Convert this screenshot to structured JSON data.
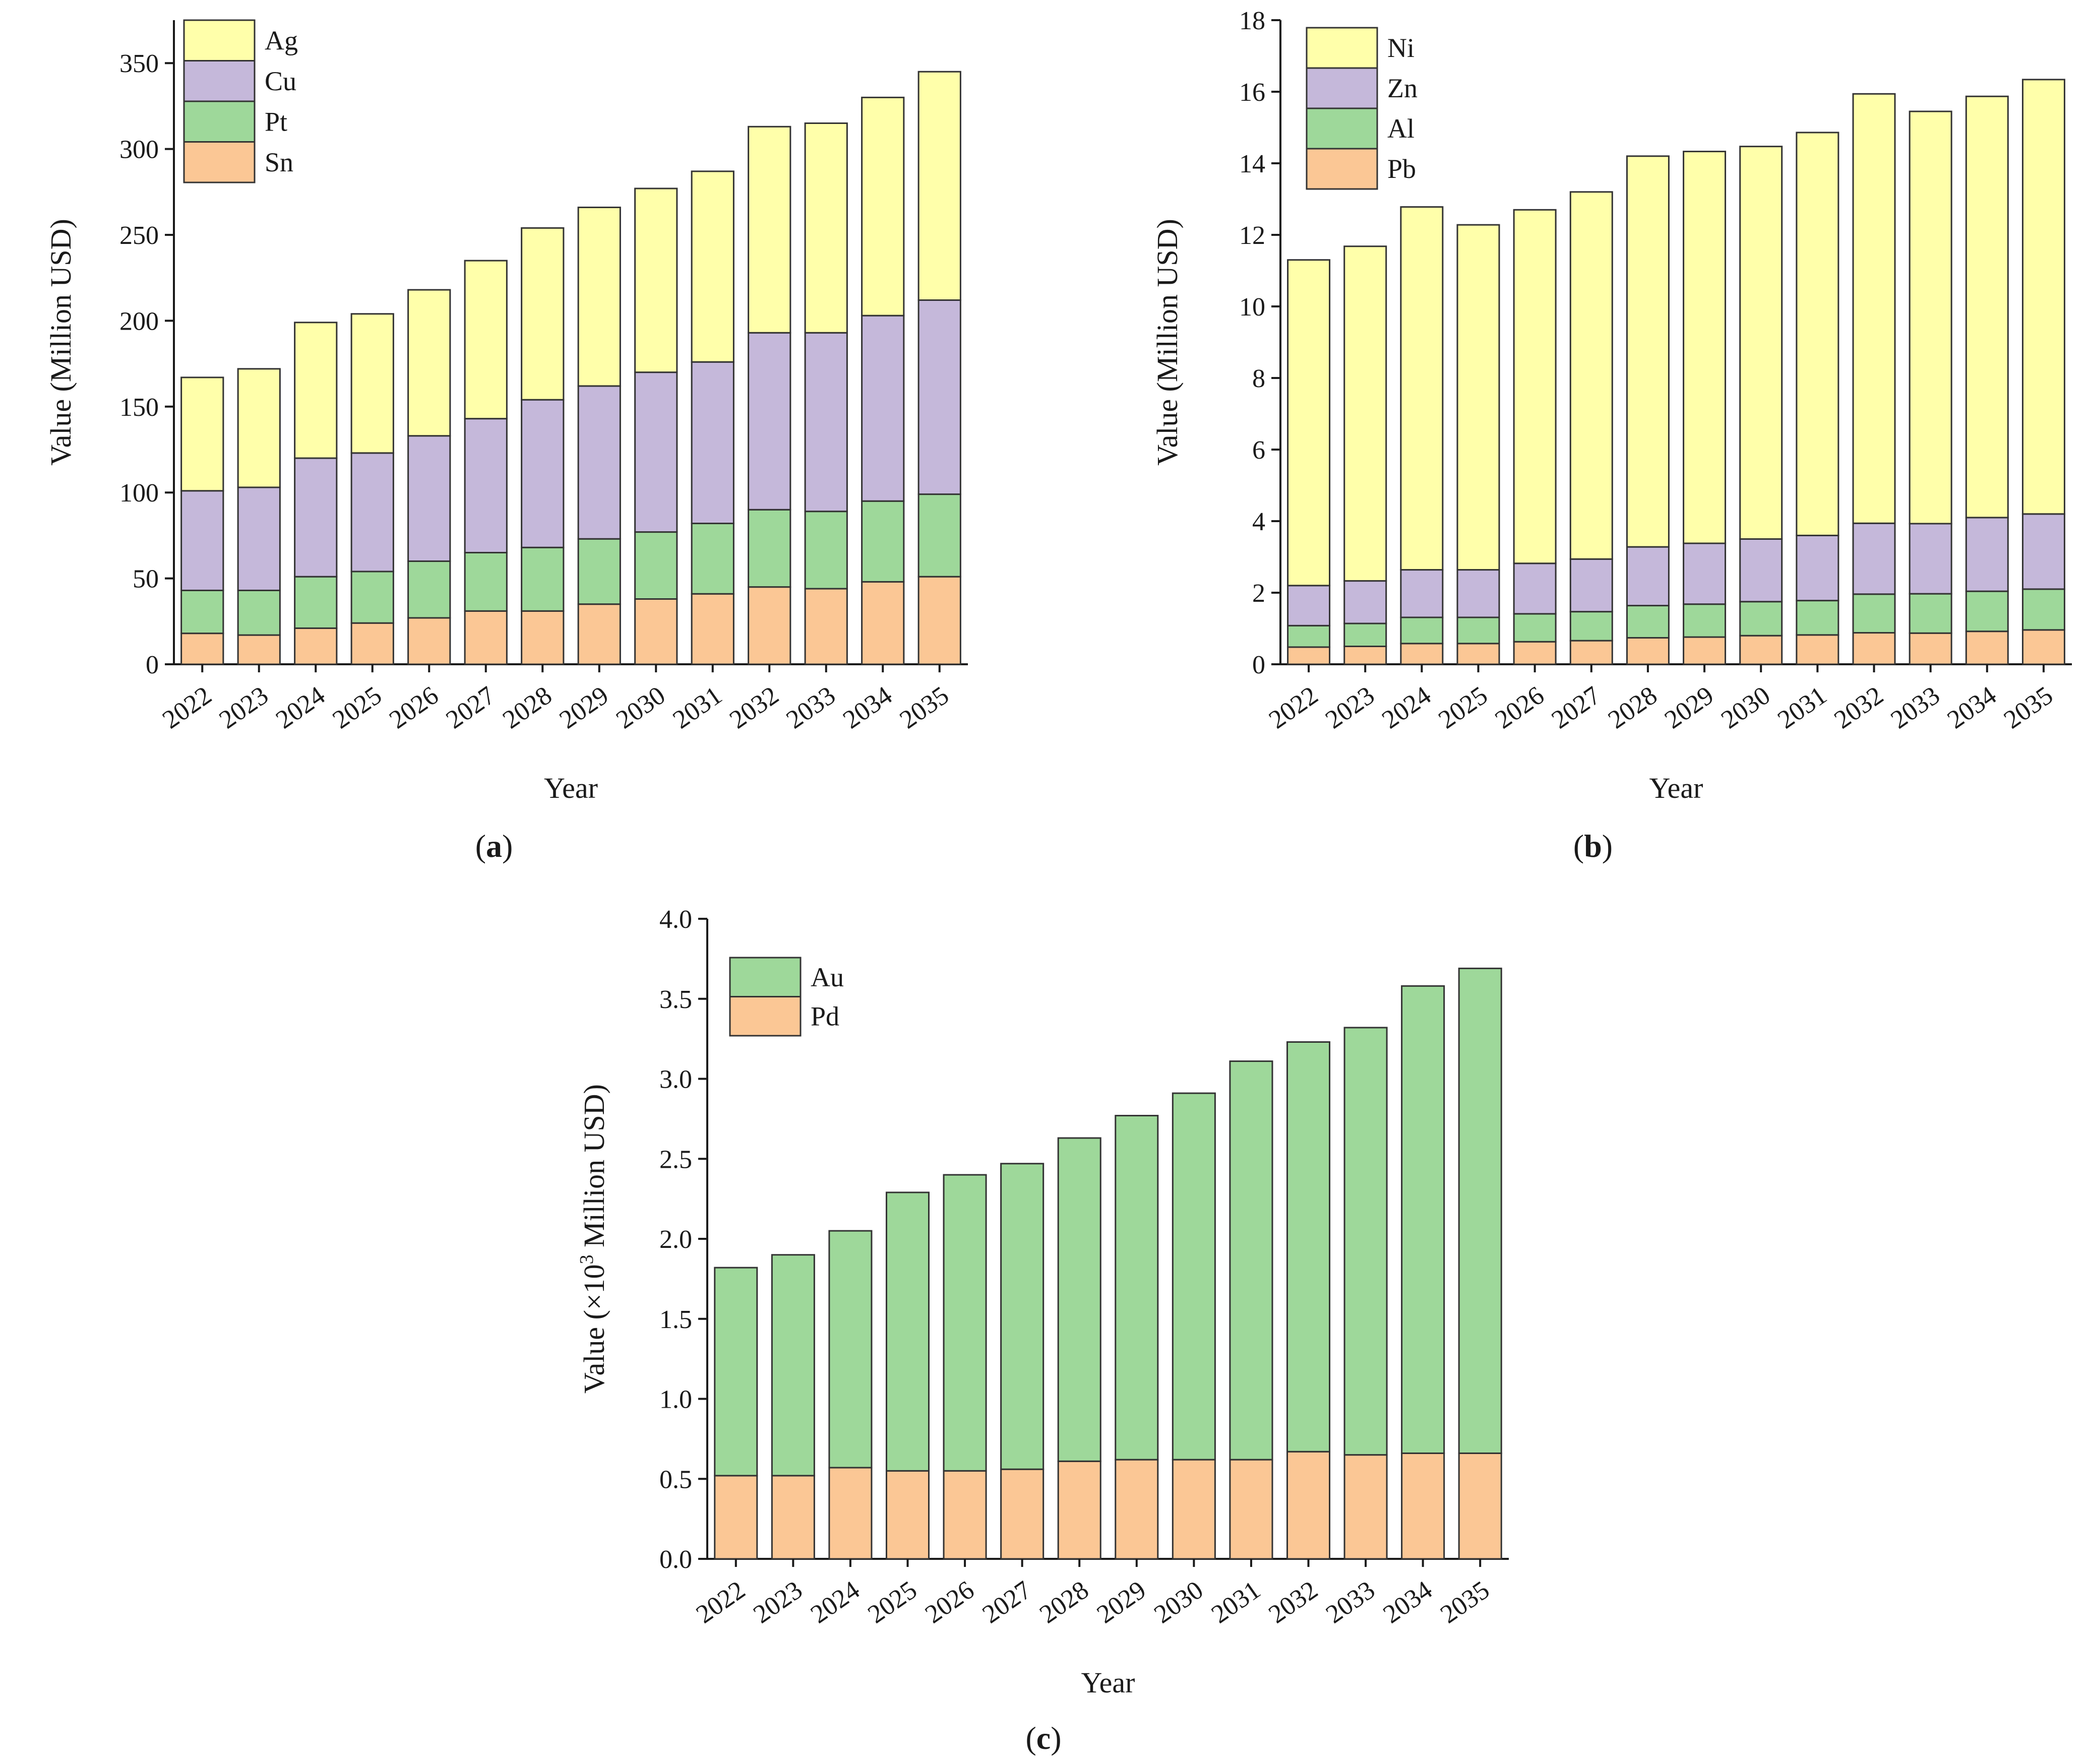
{
  "figure": {
    "panels": [
      {
        "open": "(",
        "letter": "a",
        "close": ")"
      },
      {
        "open": "(",
        "letter": "b",
        "close": ")"
      },
      {
        "open": "(",
        "letter": "c",
        "close": ")"
      }
    ]
  },
  "colors": {
    "yellow": "#FFFFAA",
    "purple": "#C5B8DA",
    "green": "#9ED89A",
    "orange": "#FBC795",
    "axis": "#1a1a1a"
  },
  "chart_data": [
    {
      "id": "a",
      "type": "bar",
      "stacked": true,
      "title": "",
      "xlabel": "Year",
      "ylabel": "Value (Million USD)",
      "ylim": [
        0,
        375
      ],
      "yticks": [
        0,
        50,
        100,
        150,
        200,
        250,
        300,
        350
      ],
      "ytick_labels": [
        "0",
        "50",
        "100",
        "150",
        "200",
        "250",
        "300",
        "350"
      ],
      "categories": [
        "2022",
        "2023",
        "2024",
        "2025",
        "2026",
        "2027",
        "2028",
        "2029",
        "2030",
        "2031",
        "2032",
        "2033",
        "2034",
        "2035"
      ],
      "legend_position": "top-left",
      "legend_order": [
        "Ag",
        "Cu",
        "Pt",
        "Sn"
      ],
      "series": [
        {
          "name": "Sn",
          "color": "#FBC795",
          "values": [
            18,
            17,
            21,
            24,
            27,
            31,
            31,
            35,
            38,
            41,
            45,
            44,
            48,
            51
          ]
        },
        {
          "name": "Pt",
          "color": "#9ED89A",
          "values": [
            25,
            26,
            30,
            30,
            33,
            34,
            37,
            38,
            39,
            41,
            45,
            45,
            47,
            48
          ]
        },
        {
          "name": "Cu",
          "color": "#C5B8DA",
          "values": [
            58,
            60,
            69,
            69,
            73,
            78,
            86,
            89,
            93,
            94,
            103,
            104,
            108,
            113
          ]
        },
        {
          "name": "Ag",
          "color": "#FFFFAA",
          "values": [
            66,
            69,
            79,
            81,
            85,
            92,
            100,
            104,
            107,
            111,
            120,
            122,
            127,
            133
          ]
        }
      ]
    },
    {
      "id": "b",
      "type": "bar",
      "stacked": true,
      "title": "",
      "xlabel": "Year",
      "ylabel": "Value (Million USD)",
      "ylim": [
        0,
        18
      ],
      "yticks": [
        0,
        2,
        4,
        6,
        8,
        10,
        12,
        14,
        16,
        18
      ],
      "ytick_labels": [
        "0",
        "2",
        "4",
        "6",
        "8",
        "10",
        "12",
        "14",
        "16",
        "18"
      ],
      "categories": [
        "2022",
        "2023",
        "2024",
        "2025",
        "2026",
        "2027",
        "2028",
        "2029",
        "2030",
        "2031",
        "2032",
        "2033",
        "2034",
        "2035"
      ],
      "legend_position": "top-left",
      "legend_order": [
        "Ni",
        "Zn",
        "Al",
        "Pb"
      ],
      "series": [
        {
          "name": "Pb",
          "color": "#FBC795",
          "values": [
            0.48,
            0.5,
            0.58,
            0.58,
            0.63,
            0.66,
            0.74,
            0.76,
            0.8,
            0.82,
            0.88,
            0.87,
            0.92,
            0.96
          ]
        },
        {
          "name": "Al",
          "color": "#9ED89A",
          "values": [
            0.6,
            0.64,
            0.73,
            0.73,
            0.78,
            0.81,
            0.9,
            0.92,
            0.95,
            0.96,
            1.08,
            1.1,
            1.12,
            1.14
          ]
        },
        {
          "name": "Zn",
          "color": "#C5B8DA",
          "values": [
            1.12,
            1.19,
            1.33,
            1.33,
            1.41,
            1.47,
            1.64,
            1.7,
            1.75,
            1.82,
            1.98,
            1.96,
            2.06,
            2.1
          ]
        },
        {
          "name": "Ni",
          "color": "#FFFFAA",
          "values": [
            9.1,
            9.35,
            10.14,
            9.64,
            9.88,
            10.26,
            10.92,
            10.95,
            10.97,
            11.26,
            12.0,
            11.52,
            11.77,
            12.14
          ]
        }
      ]
    },
    {
      "id": "c",
      "type": "bar",
      "stacked": true,
      "title": "",
      "xlabel": "Year",
      "ylabel_parts": [
        "Value (×10",
        "3",
        " Million USD)"
      ],
      "ylim": [
        0,
        4.0
      ],
      "yticks": [
        0,
        0.5,
        1.0,
        1.5,
        2.0,
        2.5,
        3.0,
        3.5,
        4.0
      ],
      "ytick_labels": [
        "0.0",
        "0.5",
        "1.0",
        "1.5",
        "2.0",
        "2.5",
        "3.0",
        "3.5",
        "4.0"
      ],
      "categories": [
        "2022",
        "2023",
        "2024",
        "2025",
        "2026",
        "2027",
        "2028",
        "2029",
        "2030",
        "2031",
        "2032",
        "2033",
        "2034",
        "2035"
      ],
      "legend_position": "upper-left",
      "legend_order": [
        "Au",
        "Pd"
      ],
      "series": [
        {
          "name": "Pd",
          "color": "#FBC795",
          "values": [
            0.52,
            0.52,
            0.57,
            0.55,
            0.55,
            0.56,
            0.61,
            0.62,
            0.62,
            0.62,
            0.67,
            0.65,
            0.66,
            0.66
          ]
        },
        {
          "name": "Au",
          "color": "#9ED89A",
          "values": [
            1.3,
            1.38,
            1.48,
            1.74,
            1.85,
            1.91,
            2.02,
            2.15,
            2.29,
            2.49,
            2.56,
            2.67,
            2.92,
            3.03
          ]
        }
      ]
    }
  ]
}
